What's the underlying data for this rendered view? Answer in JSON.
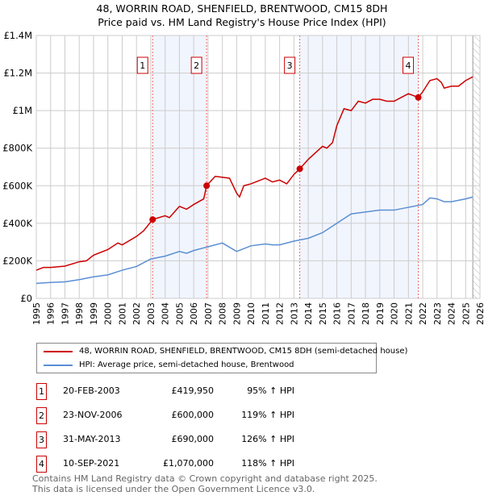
{
  "title": "48, WORRIN ROAD, SHENFIELD, BRENTWOOD, CM15 8DH",
  "subtitle": "Price paid vs. HM Land Registry's House Price Index (HPI)",
  "chart_data": {
    "type": "line",
    "xlim": [
      1995,
      2026
    ],
    "ylim": [
      0,
      1400000
    ],
    "xticks": [
      "1995",
      "1996",
      "1997",
      "1998",
      "1999",
      "2000",
      "2001",
      "2002",
      "2003",
      "2004",
      "2005",
      "2006",
      "2007",
      "2008",
      "2009",
      "2010",
      "2011",
      "2012",
      "2013",
      "2014",
      "2015",
      "2016",
      "2017",
      "2018",
      "2019",
      "2020",
      "2021",
      "2022",
      "2023",
      "2024",
      "2025",
      "2026"
    ],
    "yticks": [
      {
        "v": 0,
        "l": "£0"
      },
      {
        "v": 200000,
        "l": "£200K"
      },
      {
        "v": 400000,
        "l": "£400K"
      },
      {
        "v": 600000,
        "l": "£600K"
      },
      {
        "v": 800000,
        "l": "£800K"
      },
      {
        "v": 1000000,
        "l": "£1M"
      },
      {
        "v": 1200000,
        "l": "£1.2M"
      },
      {
        "v": 1400000,
        "l": "£1.4M"
      }
    ],
    "series": [
      {
        "name": "48, WORRIN ROAD, SHENFIELD, BRENTWOOD, CM15 8DH (semi-detached house)",
        "color": "#cc0000",
        "x": [
          1995,
          1995.5,
          1996,
          1997,
          1998,
          1998.5,
          1999,
          2000,
          2000.7,
          2001,
          2002,
          2002.5,
          2003.13,
          2004,
          2004.3,
          2005,
          2005.5,
          2006,
          2006.7,
          2006.9,
          2007.5,
          2008.5,
          2009,
          2009.2,
          2009.5,
          2010,
          2011,
          2011.5,
          2012,
          2012.5,
          2013,
          2013.41,
          2014,
          2015,
          2015.3,
          2015.7,
          2016,
          2016.5,
          2017,
          2017.5,
          2018,
          2018.5,
          2019,
          2019.5,
          2020,
          2020.5,
          2021,
          2021.69,
          2022,
          2022.5,
          2023,
          2023.3,
          2023.5,
          2024,
          2024.5,
          2025,
          2025.5
        ],
        "y": [
          150000,
          165000,
          165000,
          172000,
          195000,
          200000,
          230000,
          260000,
          295000,
          285000,
          330000,
          360000,
          420000,
          440000,
          430000,
          490000,
          475000,
          500000,
          530000,
          600000,
          650000,
          640000,
          560000,
          540000,
          600000,
          610000,
          640000,
          620000,
          630000,
          610000,
          660000,
          690000,
          740000,
          810000,
          800000,
          830000,
          920000,
          1010000,
          1000000,
          1050000,
          1040000,
          1060000,
          1060000,
          1050000,
          1050000,
          1070000,
          1090000,
          1070000,
          1100000,
          1160000,
          1170000,
          1150000,
          1120000,
          1130000,
          1130000,
          1160000,
          1180000
        ]
      },
      {
        "name": "HPI: Average price, semi-detached house, Brentwood",
        "color": "#5b8fd4",
        "x": [
          1995,
          1996,
          1997,
          1998,
          1999,
          2000,
          2001,
          2002,
          2003,
          2004,
          2005,
          2005.5,
          2006,
          2007,
          2008,
          2009,
          2010,
          2011,
          2011.5,
          2012,
          2013,
          2014,
          2015,
          2016,
          2017,
          2018,
          2019,
          2020,
          2021,
          2022,
          2022.5,
          2023,
          2023.5,
          2024,
          2025,
          2025.5
        ],
        "y": [
          80000,
          85000,
          88000,
          100000,
          115000,
          125000,
          150000,
          170000,
          210000,
          225000,
          250000,
          240000,
          255000,
          275000,
          295000,
          250000,
          280000,
          290000,
          285000,
          285000,
          305000,
          320000,
          350000,
          400000,
          450000,
          460000,
          470000,
          470000,
          485000,
          500000,
          535000,
          530000,
          515000,
          515000,
          530000,
          540000
        ]
      }
    ],
    "sales": [
      {
        "n": "1",
        "x": 2003.13,
        "y": 419950,
        "date": "20-FEB-2003",
        "price": "£419,950",
        "hpi": "95% ↑ HPI"
      },
      {
        "n": "2",
        "x": 2006.9,
        "y": 600000,
        "date": "23-NOV-2006",
        "price": "£600,000",
        "hpi": "119% ↑ HPI"
      },
      {
        "n": "3",
        "x": 2013.41,
        "y": 690000,
        "date": "31-MAY-2013",
        "price": "£690,000",
        "hpi": "126% ↑ HPI"
      },
      {
        "n": "4",
        "x": 2021.69,
        "y": 1070000,
        "date": "10-SEP-2021",
        "price": "£1,070,000",
        "hpi": "118% ↑ HPI"
      }
    ],
    "shaded": [
      [
        2003.13,
        2006.9
      ],
      [
        2013.41,
        2021.69
      ]
    ],
    "future_from": 2025.5
  },
  "legend": [
    "48, WORRIN ROAD, SHENFIELD, BRENTWOOD, CM15 8DH (semi-detached house)",
    "HPI: Average price, semi-detached house, Brentwood"
  ],
  "footer": [
    "Contains HM Land Registry data © Crown copyright and database right 2025.",
    "This data is licensed under the Open Government Licence v3.0."
  ]
}
